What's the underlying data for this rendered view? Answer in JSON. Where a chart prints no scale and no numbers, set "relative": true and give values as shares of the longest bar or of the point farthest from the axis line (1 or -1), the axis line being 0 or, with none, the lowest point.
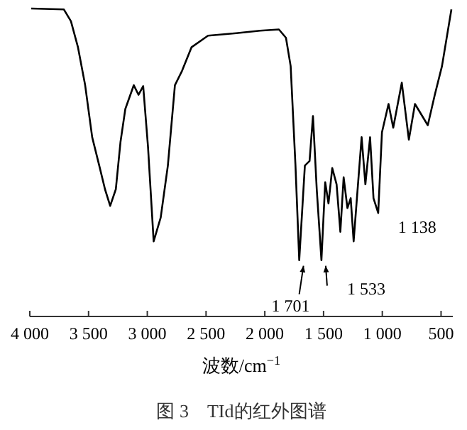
{
  "chart_data": {
    "type": "line",
    "title": "图 3　TId的红外图谱",
    "xlabel": "波数/cm$^{−1}$",
    "relative": true,
    "color": "#000000",
    "x": [
      3988,
      3710,
      3650,
      3590,
      3529,
      3469,
      3409,
      3360,
      3316,
      3268,
      3228,
      3187,
      3115,
      3075,
      3035,
      2994,
      2946,
      2886,
      2825,
      2765,
      2705,
      2624,
      2483,
      2242,
      2041,
      1880,
      1820,
      1780,
      1739,
      1707,
      1659,
      1619,
      1590,
      1558,
      1518,
      1486,
      1458,
      1426,
      1389,
      1357,
      1329,
      1297,
      1269,
      1244,
      1216,
      1176,
      1144,
      1104,
      1075,
      1035,
      1003,
      947,
      907,
      834,
      774,
      722,
      613,
      553,
      492,
      412
    ],
    "values": [
      1.0,
      0.997,
      0.959,
      0.874,
      0.751,
      0.582,
      0.49,
      0.413,
      0.359,
      0.413,
      0.567,
      0.674,
      0.751,
      0.72,
      0.748,
      0.551,
      0.244,
      0.321,
      0.49,
      0.751,
      0.797,
      0.874,
      0.912,
      0.92,
      0.928,
      0.932,
      0.905,
      0.813,
      0.49,
      0.183,
      0.49,
      0.505,
      0.651,
      0.413,
      0.183,
      0.436,
      0.367,
      0.482,
      0.429,
      0.275,
      0.452,
      0.352,
      0.384,
      0.244,
      0.384,
      0.582,
      0.429,
      0.582,
      0.384,
      0.336,
      0.598,
      0.69,
      0.613,
      0.759,
      0.574,
      0.69,
      0.621,
      0.72,
      0.813,
      0.997
    ],
    "xlim": [
      4000,
      400
    ],
    "xticks": [
      {
        "value": 4000,
        "label": "4 000"
      },
      {
        "value": 3500,
        "label": "3 500"
      },
      {
        "value": 3000,
        "label": "3 000"
      },
      {
        "value": 2500,
        "label": "2 500"
      },
      {
        "value": 2000,
        "label": "2 000"
      },
      {
        "value": 1500,
        "label": "1 500"
      },
      {
        "value": 1000,
        "label": "1 000"
      },
      500
    ],
    "annotations": [
      {
        "text": "1 701",
        "x": 1707,
        "y": 0.183
      },
      {
        "text": "1 533",
        "x": 1518,
        "y": 0.183
      },
      {
        "text": "1 138",
        "x": 1035,
        "y": 0.336
      }
    ]
  }
}
